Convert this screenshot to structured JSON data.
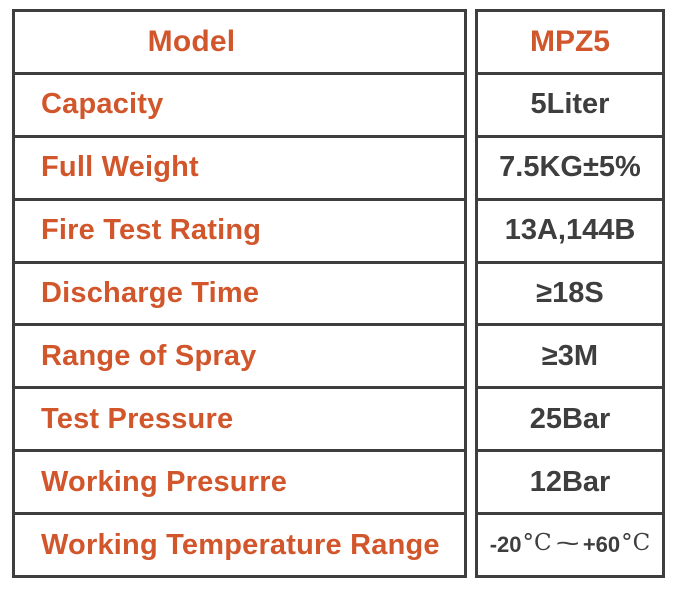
{
  "colors": {
    "accent_orange": "#d2562b",
    "text_dark": "#3e3e3e",
    "border": "#3e3e3e",
    "background": "#ffffff"
  },
  "table": {
    "description": "product-specification-table",
    "columns": [
      "attribute",
      "value"
    ],
    "rows": [
      {
        "label": "Model",
        "value": "MPZ5"
      },
      {
        "label": "Capacity",
        "value": "5Liter"
      },
      {
        "label": "Full Weight",
        "value": "7.5KG±5%"
      },
      {
        "label": "Fire Test Rating",
        "value": "13A,144B"
      },
      {
        "label": "Discharge Time",
        "value": "≥18S"
      },
      {
        "label": "Range of Spray",
        "value": "≥3M"
      },
      {
        "label": "Test Pressure",
        "value": "25Bar"
      },
      {
        "label": "Working Presurre",
        "value": "12Bar"
      },
      {
        "label": "Working Temperature Range",
        "value": "-20℃～ +60℃"
      }
    ]
  }
}
